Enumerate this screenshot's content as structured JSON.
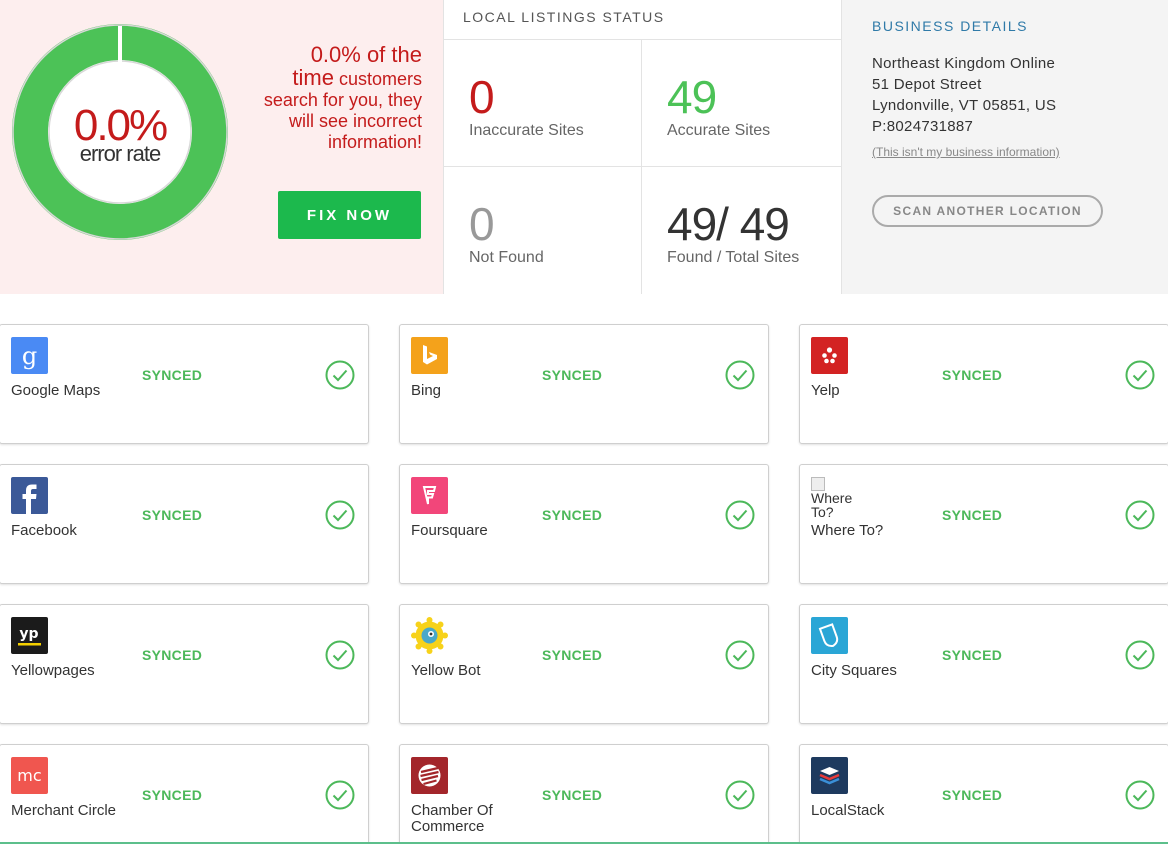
{
  "error_panel": {
    "rate_value": "0.0%",
    "rate_label": "error rate",
    "message_big": "0.0% of the",
    "message_big2": "time",
    "message_rest": "customers search for you, they will see incorrect information!",
    "fix_button": "FIX NOW",
    "colors": {
      "ring": "#4cc257",
      "accent": "#c41b1b",
      "button": "#1cb94d"
    }
  },
  "stats": {
    "title": "LOCAL LISTINGS STATUS",
    "inaccurate": {
      "value": "0",
      "label": "Inaccurate Sites"
    },
    "accurate": {
      "value": "49",
      "label": "Accurate Sites"
    },
    "not_found": {
      "value": "0",
      "label": "Not Found"
    },
    "found_total": {
      "value": "49/ 49",
      "label": "Found / Total Sites"
    }
  },
  "business": {
    "title": "BUSINESS DETAILS",
    "name": "Northeast Kingdom Online",
    "street": "51 Depot Street",
    "city": "Lyndonville, VT 05851, US",
    "phone": "P:8024731887",
    "link": "(This isn't my business information)",
    "scan_button": "SCAN ANOTHER LOCATION"
  },
  "listings": [
    {
      "name": "Google Maps",
      "status": "SYNCED",
      "icon": "google-maps-icon"
    },
    {
      "name": "Bing",
      "status": "SYNCED",
      "icon": "bing-icon"
    },
    {
      "name": "Yelp",
      "status": "SYNCED",
      "icon": "yelp-icon"
    },
    {
      "name": "Facebook",
      "status": "SYNCED",
      "icon": "facebook-icon"
    },
    {
      "name": "Foursquare",
      "status": "SYNCED",
      "icon": "foursquare-icon"
    },
    {
      "name": "Where To?",
      "status": "SYNCED",
      "icon": "broken-image-icon",
      "broken_alt": "Where To?"
    },
    {
      "name": "Yellowpages",
      "status": "SYNCED",
      "icon": "yellowpages-icon"
    },
    {
      "name": "Yellow Bot",
      "status": "SYNCED",
      "icon": "yellowbot-icon"
    },
    {
      "name": "City Squares",
      "status": "SYNCED",
      "icon": "city-squares-icon"
    },
    {
      "name": "Merchant Circle",
      "status": "SYNCED",
      "icon": "merchant-circle-icon"
    },
    {
      "name": "Chamber Of Commerce",
      "status": "SYNCED",
      "icon": "chamber-of-commerce-icon"
    },
    {
      "name": "LocalStack",
      "status": "SYNCED",
      "icon": "localstack-icon"
    }
  ],
  "icon_labels": {
    "yellowpages": "yp",
    "merchant_circle": "mc"
  }
}
